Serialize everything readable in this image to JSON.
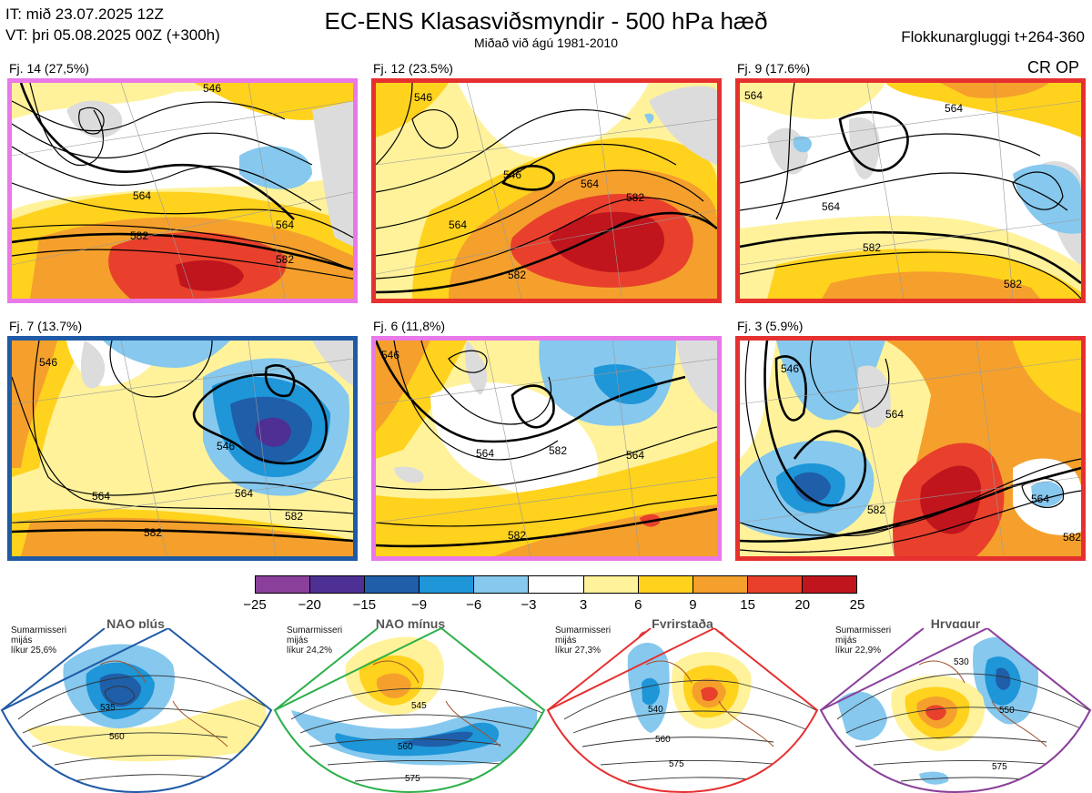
{
  "header": {
    "it": "IT: mið 23.07.2025 12Z",
    "vt": "VT: þri 05.08.2025 00Z  (+300h)",
    "title": "EC-ENS Klasasviðsmyndir - 500 hPa hæð",
    "subtitle": "Miðað við ágú 1981-2010",
    "window": "Flokkunargluggi t+264-360",
    "code": "CR OP"
  },
  "panels": [
    {
      "label": "Fj. 14 (27,5%)",
      "border": "#e978e9",
      "contours": [
        "546",
        "564",
        "582",
        "564",
        "582"
      ]
    },
    {
      "label": "Fj. 12 (23.5%)",
      "border": "#e63030",
      "contours": [
        "546",
        "546",
        "564",
        "564",
        "582",
        "582"
      ]
    },
    {
      "label": "Fj. 9 (17.6%)",
      "border": "#e63030",
      "contours": [
        "564",
        "564",
        "564",
        "582",
        "582"
      ]
    },
    {
      "label": "Fj. 7 (13.7%)",
      "border": "#1f5aa6",
      "contours": [
        "546",
        "564",
        "564",
        "546",
        "582",
        "582"
      ]
    },
    {
      "label": "Fj. 6 (11,8%)",
      "border": "#e978e9",
      "contours": [
        "546",
        "564",
        "564",
        "582",
        "582"
      ]
    },
    {
      "label": "Fj. 3 (5.9%)",
      "border": "#e63030",
      "contours": [
        "546",
        "564",
        "564",
        "582",
        "582"
      ]
    }
  ],
  "colorbar": {
    "labels": [
      "−25",
      "−20",
      "−15",
      "−9",
      "−6",
      "−3",
      "3",
      "6",
      "9",
      "15",
      "20",
      "25"
    ],
    "colors": [
      "#8a3f9a",
      "#4e2f93",
      "#1f5ea8",
      "#1e96d8",
      "#86c8ee",
      "#ffffff",
      "#fff29a",
      "#ffd21e",
      "#f5a02c",
      "#e8402c",
      "#c0151d"
    ]
  },
  "regimes": [
    {
      "name": "NAO plús",
      "note": [
        "Sumarmisseri",
        "mijás",
        "líkur 25,6%"
      ],
      "dot_color": "#1f5ea8",
      "frame": "#1f5aa6",
      "contours": [
        "535",
        "560"
      ]
    },
    {
      "name": "NAO mínus",
      "note": [
        "Sumarmisseri",
        "mijás",
        "líkur 24,2%"
      ],
      "dot_color": "#2cb04a",
      "frame": "#2cb04a",
      "contours": [
        "545",
        "560",
        "575"
      ]
    },
    {
      "name": "Fyrirstaða",
      "note": [
        "Sumarmisseri",
        "mijás",
        "líkur 27,3%"
      ],
      "dot_color": "#e63030",
      "frame": "#e63030",
      "contours": [
        "540",
        "560",
        "575"
      ]
    },
    {
      "name": "Hryggur",
      "note": [
        "Sumarmisseri",
        "mijás",
        "líkur 22,9%"
      ],
      "dot_color": "#e978e9",
      "frame": "#8a3f9a",
      "contours": [
        "530",
        "550",
        "575"
      ]
    }
  ]
}
